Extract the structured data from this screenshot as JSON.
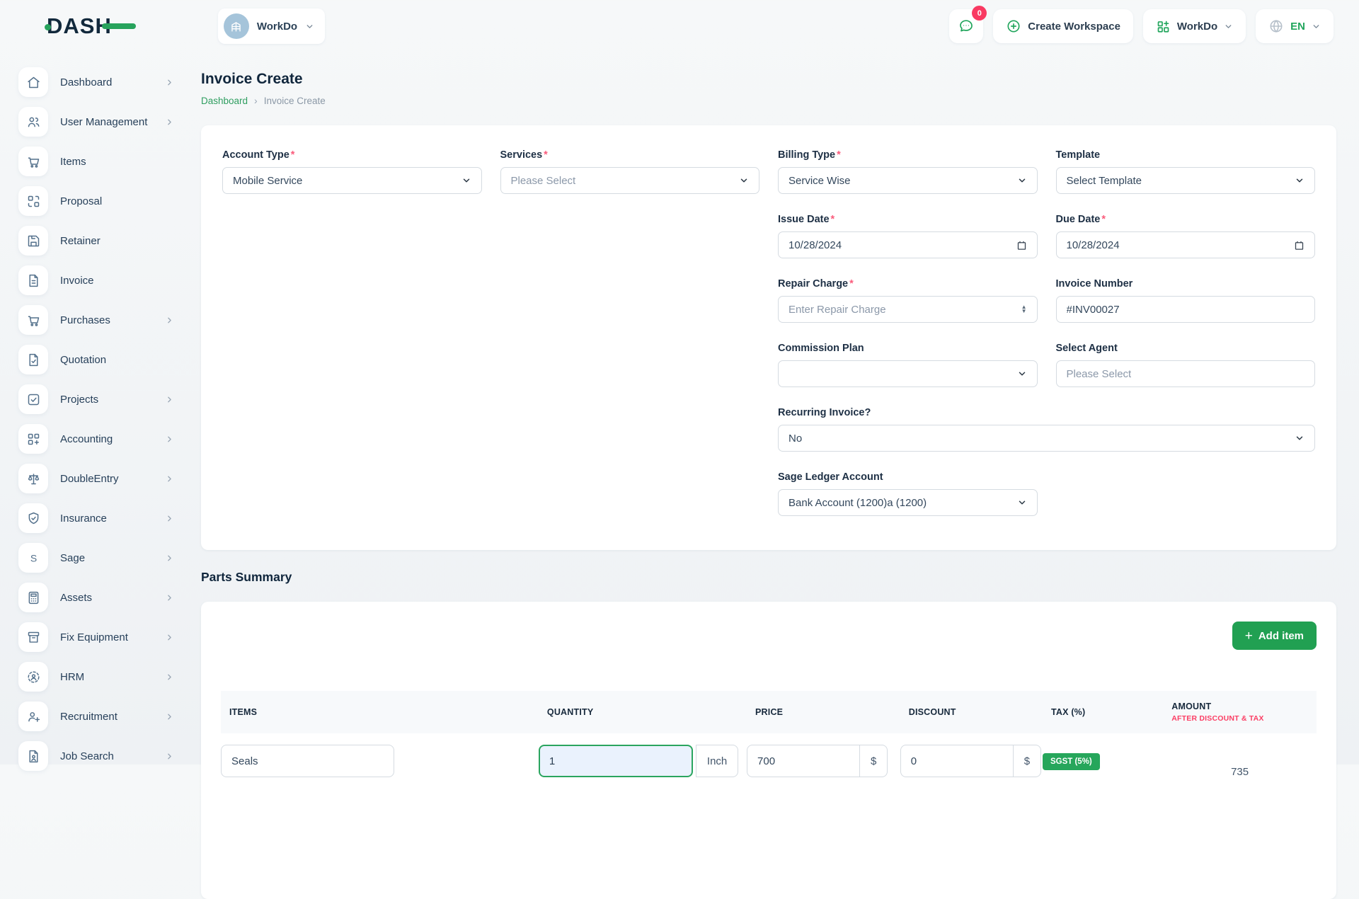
{
  "brand": {
    "logo_text": "DASH"
  },
  "topbar": {
    "workspace_selector": {
      "label": "WorkDo",
      "avatar_icon": "building-icon"
    },
    "messages": {
      "icon": "chat-icon",
      "badge_count": "0"
    },
    "create_workspace_label": "Create Workspace",
    "workspace_menu_label": "WorkDo",
    "language": "EN"
  },
  "sidebar": {
    "items": [
      {
        "label": "Dashboard",
        "icon": "home-icon",
        "has_submenu": true
      },
      {
        "label": "User Management",
        "icon": "users-icon",
        "has_submenu": true
      },
      {
        "label": "Items",
        "icon": "cart-icon",
        "has_submenu": false
      },
      {
        "label": "Proposal",
        "icon": "proposal-icon",
        "has_submenu": false
      },
      {
        "label": "Retainer",
        "icon": "save-icon",
        "has_submenu": false
      },
      {
        "label": "Invoice",
        "icon": "document-icon",
        "has_submenu": false
      },
      {
        "label": "Purchases",
        "icon": "cart-icon",
        "has_submenu": true
      },
      {
        "label": "Quotation",
        "icon": "document-check-icon",
        "has_submenu": false
      },
      {
        "label": "Projects",
        "icon": "checkbox-icon",
        "has_submenu": true
      },
      {
        "label": "Accounting",
        "icon": "grid-plus-icon",
        "has_submenu": true
      },
      {
        "label": "DoubleEntry",
        "icon": "scale-icon",
        "has_submenu": true
      },
      {
        "label": "Insurance",
        "icon": "shield-icon",
        "has_submenu": true
      },
      {
        "label": "Sage",
        "icon": "sage-icon",
        "has_submenu": true
      },
      {
        "label": "Assets",
        "icon": "calculator-icon",
        "has_submenu": true
      },
      {
        "label": "Fix Equipment",
        "icon": "archive-icon",
        "has_submenu": true
      },
      {
        "label": "HRM",
        "icon": "person-focus-icon",
        "has_submenu": true
      },
      {
        "label": "Recruitment",
        "icon": "person-plus-icon",
        "has_submenu": true
      },
      {
        "label": "Job Search",
        "icon": "document-person-icon",
        "has_submenu": true
      }
    ]
  },
  "page": {
    "title": "Invoice Create",
    "breadcrumb": [
      {
        "label": "Dashboard"
      },
      {
        "label": "Invoice Create"
      }
    ]
  },
  "ui": {
    "required_marker": "*"
  },
  "form": {
    "account_type": {
      "label": "Account Type",
      "value": "Mobile Service"
    },
    "services": {
      "label": "Services",
      "value": "Please Select"
    },
    "billing_type": {
      "label": "Billing Type",
      "value": "Service Wise"
    },
    "template": {
      "label": "Template",
      "value": "Select Template"
    },
    "issue_date": {
      "label": "Issue Date",
      "value": "10/28/2024"
    },
    "due_date": {
      "label": "Due Date",
      "value": "10/28/2024"
    },
    "repair_charge": {
      "label": "Repair Charge",
      "placeholder": "Enter Repair Charge"
    },
    "invoice_number": {
      "label": "Invoice Number",
      "value": "#INV00027"
    },
    "commission_plan": {
      "label": "Commission Plan",
      "value": ""
    },
    "select_agent": {
      "label": "Select Agent",
      "placeholder": "Please Select"
    },
    "recurring_invoice": {
      "label": "Recurring Invoice?",
      "value": "No"
    },
    "sage_ledger_account": {
      "label": "Sage Ledger Account",
      "value": "Bank Account (1200)a (1200)"
    }
  },
  "parts_summary": {
    "title": "Parts Summary",
    "add_item_label": "Add item",
    "table": {
      "headers": [
        "ITEMS",
        "QUANTITY",
        "PRICE",
        "DISCOUNT",
        "TAX (%)",
        "AMOUNT"
      ],
      "amount_subheader": "AFTER DISCOUNT & TAX",
      "rows": [
        {
          "item": "Seals",
          "quantity": "1",
          "unit": "Inch",
          "price": "700",
          "price_currency": "$",
          "discount": "0",
          "discount_currency": "$",
          "tax_badge": "SGST (5%)",
          "amount": "735"
        }
      ]
    }
  },
  "colors": {
    "accent_green": "#21a55c",
    "badge_red": "#f93a62",
    "required_pink": "#fa5c7c",
    "tax_badge_green": "#26a65b",
    "amount_subheader_pink": "#fb3e64"
  }
}
